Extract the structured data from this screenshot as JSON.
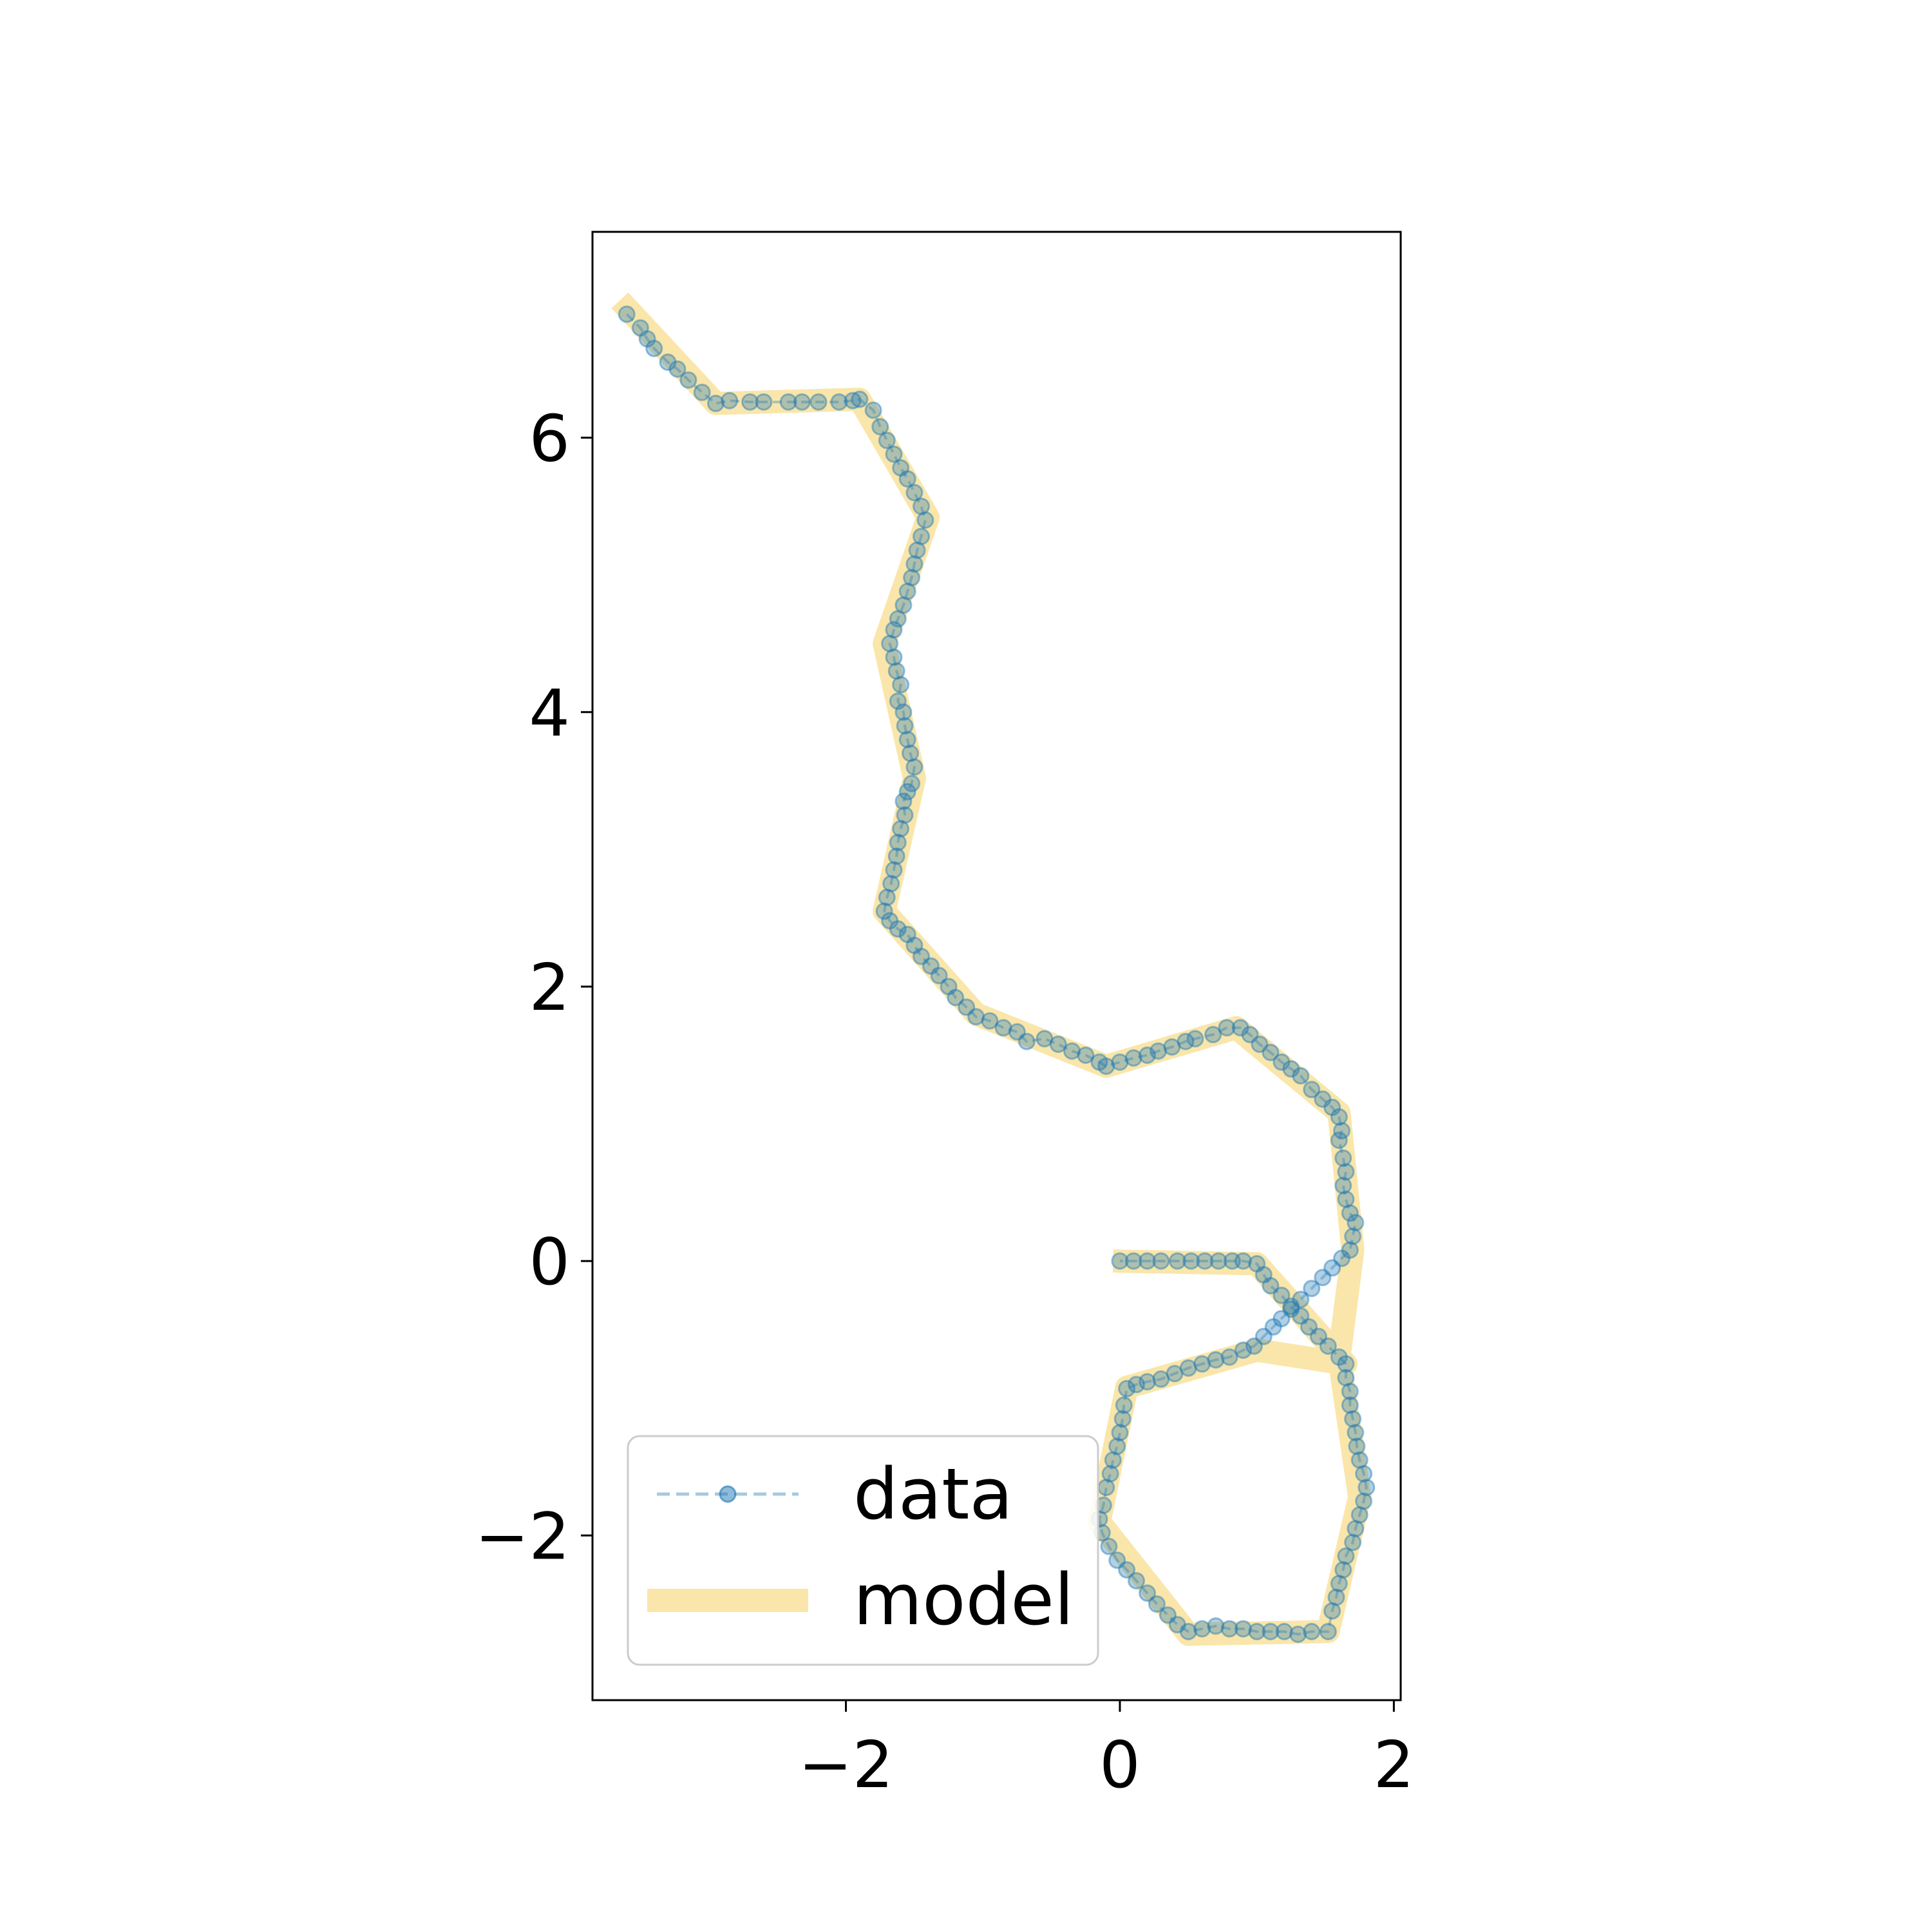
{
  "chart_data": {
    "type": "line",
    "title": "",
    "xlabel": "",
    "ylabel": "",
    "xlim": [
      -3.85,
      2.05
    ],
    "ylim": [
      -3.2,
      7.5
    ],
    "x_ticks": [
      -2,
      0,
      2
    ],
    "x_tick_labels": [
      "−2",
      "0",
      "2"
    ],
    "y_ticks": [
      -2,
      0,
      2,
      4,
      6
    ],
    "y_tick_labels": [
      "−2",
      "0",
      "2",
      "4",
      "6"
    ],
    "grid": false,
    "legend_position": "lower-left",
    "series": [
      {
        "name": "data",
        "style": "dashed-line-with-markers",
        "color": "#1f77b4",
        "points": [
          [
            -3.6,
            6.9
          ],
          [
            -3.5,
            6.8
          ],
          [
            -3.45,
            6.72
          ],
          [
            -3.4,
            6.65
          ],
          [
            -3.3,
            6.55
          ],
          [
            -3.23,
            6.5
          ],
          [
            -3.15,
            6.42
          ],
          [
            -3.05,
            6.33
          ],
          [
            -2.95,
            6.25
          ],
          [
            -2.85,
            6.27
          ],
          [
            -2.7,
            6.26
          ],
          [
            -2.6,
            6.26
          ],
          [
            -2.42,
            6.26
          ],
          [
            -2.32,
            6.26
          ],
          [
            -2.2,
            6.26
          ],
          [
            -2.05,
            6.26
          ],
          [
            -1.95,
            6.27
          ],
          [
            -1.9,
            6.28
          ],
          [
            -1.8,
            6.2
          ],
          [
            -1.75,
            6.08
          ],
          [
            -1.7,
            5.98
          ],
          [
            -1.65,
            5.88
          ],
          [
            -1.6,
            5.78
          ],
          [
            -1.55,
            5.7
          ],
          [
            -1.5,
            5.6
          ],
          [
            -1.45,
            5.5
          ],
          [
            -1.42,
            5.4
          ],
          [
            -1.45,
            5.28
          ],
          [
            -1.48,
            5.18
          ],
          [
            -1.5,
            5.08
          ],
          [
            -1.52,
            4.98
          ],
          [
            -1.55,
            4.88
          ],
          [
            -1.58,
            4.78
          ],
          [
            -1.62,
            4.68
          ],
          [
            -1.65,
            4.6
          ],
          [
            -1.68,
            4.5
          ],
          [
            -1.65,
            4.4
          ],
          [
            -1.63,
            4.3
          ],
          [
            -1.6,
            4.2
          ],
          [
            -1.62,
            4.08
          ],
          [
            -1.58,
            4.0
          ],
          [
            -1.57,
            3.9
          ],
          [
            -1.55,
            3.8
          ],
          [
            -1.53,
            3.7
          ],
          [
            -1.5,
            3.6
          ],
          [
            -1.52,
            3.48
          ],
          [
            -1.55,
            3.42
          ],
          [
            -1.58,
            3.35
          ],
          [
            -1.57,
            3.25
          ],
          [
            -1.6,
            3.15
          ],
          [
            -1.62,
            3.05
          ],
          [
            -1.63,
            2.95
          ],
          [
            -1.65,
            2.85
          ],
          [
            -1.67,
            2.75
          ],
          [
            -1.7,
            2.65
          ],
          [
            -1.72,
            2.55
          ],
          [
            -1.68,
            2.48
          ],
          [
            -1.62,
            2.42
          ],
          [
            -1.55,
            2.38
          ],
          [
            -1.5,
            2.3
          ],
          [
            -1.45,
            2.22
          ],
          [
            -1.38,
            2.15
          ],
          [
            -1.32,
            2.08
          ],
          [
            -1.25,
            2.0
          ],
          [
            -1.2,
            1.92
          ],
          [
            -1.12,
            1.85
          ],
          [
            -1.05,
            1.78
          ],
          [
            -0.95,
            1.75
          ],
          [
            -0.85,
            1.7
          ],
          [
            -0.75,
            1.67
          ],
          [
            -0.68,
            1.6
          ],
          [
            -0.55,
            1.62
          ],
          [
            -0.45,
            1.58
          ],
          [
            -0.35,
            1.53
          ],
          [
            -0.25,
            1.5
          ],
          [
            -0.15,
            1.45
          ],
          [
            -0.1,
            1.42
          ],
          [
            0.0,
            1.45
          ],
          [
            0.1,
            1.48
          ],
          [
            0.2,
            1.5
          ],
          [
            0.28,
            1.53
          ],
          [
            0.38,
            1.56
          ],
          [
            0.48,
            1.6
          ],
          [
            0.55,
            1.62
          ],
          [
            0.68,
            1.65
          ],
          [
            0.78,
            1.7
          ],
          [
            0.88,
            1.7
          ],
          [
            0.95,
            1.65
          ],
          [
            1.02,
            1.58
          ],
          [
            1.1,
            1.52
          ],
          [
            1.18,
            1.45
          ],
          [
            1.25,
            1.4
          ],
          [
            1.32,
            1.35
          ],
          [
            1.4,
            1.25
          ],
          [
            1.48,
            1.18
          ],
          [
            1.55,
            1.12
          ],
          [
            1.6,
            1.05
          ],
          [
            1.62,
            0.95
          ],
          [
            1.6,
            0.88
          ],
          [
            1.63,
            0.75
          ],
          [
            1.65,
            0.65
          ],
          [
            1.63,
            0.55
          ],
          [
            1.65,
            0.45
          ],
          [
            1.68,
            0.35
          ],
          [
            1.72,
            0.28
          ],
          [
            1.7,
            0.18
          ],
          [
            1.68,
            0.08
          ],
          [
            1.62,
            0.02
          ],
          [
            1.55,
            -0.05
          ],
          [
            1.48,
            -0.12
          ],
          [
            1.4,
            -0.2
          ],
          [
            1.32,
            -0.28
          ],
          [
            1.25,
            -0.35
          ],
          [
            1.18,
            -0.42
          ],
          [
            1.12,
            -0.48
          ],
          [
            1.05,
            -0.55
          ],
          [
            0.98,
            -0.62
          ],
          [
            0.9,
            -0.65
          ],
          [
            0.8,
            -0.7
          ],
          [
            0.7,
            -0.72
          ],
          [
            0.6,
            -0.75
          ],
          [
            0.5,
            -0.78
          ],
          [
            0.4,
            -0.82
          ],
          [
            0.3,
            -0.86
          ],
          [
            0.2,
            -0.88
          ],
          [
            0.12,
            -0.9
          ],
          [
            0.05,
            -0.93
          ],
          [
            0.03,
            -1.05
          ],
          [
            0.02,
            -1.15
          ],
          [
            0.0,
            -1.25
          ],
          [
            -0.02,
            -1.35
          ],
          [
            -0.05,
            -1.45
          ],
          [
            -0.07,
            -1.55
          ],
          [
            -0.1,
            -1.65
          ],
          [
            -0.12,
            -1.78
          ],
          [
            -0.15,
            -1.88
          ],
          [
            -0.13,
            -1.98
          ],
          [
            -0.08,
            -2.08
          ],
          [
            -0.02,
            -2.18
          ],
          [
            0.05,
            -2.25
          ],
          [
            0.12,
            -2.33
          ],
          [
            0.2,
            -2.42
          ],
          [
            0.27,
            -2.5
          ],
          [
            0.35,
            -2.58
          ],
          [
            0.42,
            -2.65
          ],
          [
            0.5,
            -2.7
          ],
          [
            0.6,
            -2.68
          ],
          [
            0.7,
            -2.66
          ],
          [
            0.8,
            -2.68
          ],
          [
            0.9,
            -2.68
          ],
          [
            1.0,
            -2.7
          ],
          [
            1.1,
            -2.7
          ],
          [
            1.2,
            -2.7
          ],
          [
            1.3,
            -2.72
          ],
          [
            1.4,
            -2.7
          ],
          [
            1.52,
            -2.7
          ],
          [
            1.55,
            -2.55
          ],
          [
            1.58,
            -2.45
          ],
          [
            1.6,
            -2.35
          ],
          [
            1.63,
            -2.25
          ],
          [
            1.65,
            -2.15
          ],
          [
            1.7,
            -2.05
          ],
          [
            1.72,
            -1.95
          ],
          [
            1.75,
            -1.85
          ],
          [
            1.78,
            -1.75
          ],
          [
            1.8,
            -1.65
          ],
          [
            1.78,
            -1.55
          ],
          [
            1.75,
            -1.45
          ],
          [
            1.73,
            -1.35
          ],
          [
            1.72,
            -1.25
          ],
          [
            1.7,
            -1.15
          ],
          [
            1.68,
            -1.05
          ],
          [
            1.68,
            -0.95
          ],
          [
            1.65,
            -0.85
          ],
          [
            1.65,
            -0.75
          ],
          [
            1.6,
            -0.7
          ],
          [
            1.52,
            -0.62
          ],
          [
            1.45,
            -0.55
          ],
          [
            1.38,
            -0.48
          ],
          [
            1.32,
            -0.4
          ],
          [
            1.25,
            -0.33
          ],
          [
            1.18,
            -0.25
          ],
          [
            1.1,
            -0.18
          ],
          [
            1.05,
            -0.1
          ],
          [
            1.0,
            -0.02
          ],
          [
            0.9,
            0.0
          ],
          [
            0.82,
            0.0
          ],
          [
            0.72,
            0.0
          ],
          [
            0.62,
            0.0
          ],
          [
            0.52,
            0.0
          ],
          [
            0.42,
            0.0
          ],
          [
            0.3,
            0.0
          ],
          [
            0.2,
            0.0
          ],
          [
            0.1,
            0.0
          ],
          [
            0.0,
            0.0
          ]
        ]
      },
      {
        "name": "model",
        "style": "thick-line",
        "color": "#f5c842",
        "points": [
          [
            -3.65,
            7.0
          ],
          [
            -2.95,
            6.25
          ],
          [
            -1.9,
            6.28
          ],
          [
            -1.4,
            5.42
          ],
          [
            -1.72,
            4.5
          ],
          [
            -1.5,
            3.52
          ],
          [
            -1.72,
            2.55
          ],
          [
            -1.05,
            1.8
          ],
          [
            -0.1,
            1.42
          ],
          [
            0.85,
            1.7
          ],
          [
            1.6,
            1.08
          ],
          [
            1.7,
            0.08
          ],
          [
            1.6,
            -0.7
          ],
          [
            1.75,
            -1.72
          ],
          [
            1.52,
            -2.7
          ],
          [
            0.5,
            -2.72
          ],
          [
            -0.15,
            -1.9
          ],
          [
            0.05,
            -0.92
          ],
          [
            1.0,
            -0.65
          ],
          [
            1.65,
            -0.75
          ],
          [
            1.0,
            -0.02
          ],
          [
            -0.05,
            0.0
          ]
        ]
      }
    ]
  }
}
